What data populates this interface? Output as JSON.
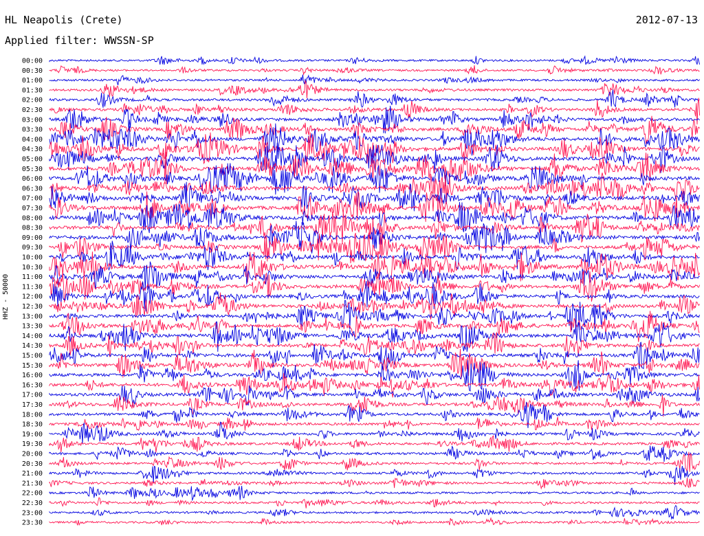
{
  "header": {
    "station": "HL Neapolis (Crete)",
    "date": "2012-07-13",
    "filter": "Applied filter: WWSSN-SP"
  },
  "chart_data": {
    "type": "line",
    "title": "HL Neapolis (Crete)",
    "date": "2012-07-13",
    "filter": "WWSSN-SP",
    "ylabel": "HHZ - 50000",
    "row_interval_minutes": 30,
    "trace_colors": [
      "#0000e0",
      "#ff1450"
    ],
    "row_labels": [
      "00:00",
      "00:30",
      "01:00",
      "01:30",
      "02:00",
      "02:30",
      "03:00",
      "03:30",
      "04:00",
      "04:30",
      "05:00",
      "05:30",
      "06:00",
      "06:30",
      "07:00",
      "07:30",
      "08:00",
      "08:30",
      "09:00",
      "09:30",
      "10:00",
      "10:30",
      "11:00",
      "11:30",
      "12:00",
      "12:30",
      "13:00",
      "13:30",
      "14:00",
      "14:30",
      "15:00",
      "15:30",
      "16:00",
      "16:30",
      "17:00",
      "17:30",
      "18:00",
      "18:30",
      "19:00",
      "19:30",
      "20:00",
      "20:30",
      "21:00",
      "21:30",
      "22:00",
      "22:30",
      "23:00",
      "23:30"
    ],
    "activity_levels": [
      0.35,
      0.3,
      0.35,
      0.45,
      0.5,
      0.55,
      0.7,
      0.75,
      0.85,
      0.9,
      0.95,
      0.95,
      0.95,
      0.95,
      0.95,
      0.95,
      0.95,
      0.9,
      0.9,
      0.85,
      0.9,
      0.9,
      0.9,
      0.85,
      0.8,
      0.8,
      0.8,
      0.8,
      0.85,
      0.8,
      0.8,
      0.8,
      0.75,
      0.8,
      0.7,
      0.65,
      0.6,
      0.55,
      0.55,
      0.5,
      0.5,
      0.45,
      0.45,
      0.4,
      0.4,
      0.35,
      0.35,
      0.3
    ]
  }
}
